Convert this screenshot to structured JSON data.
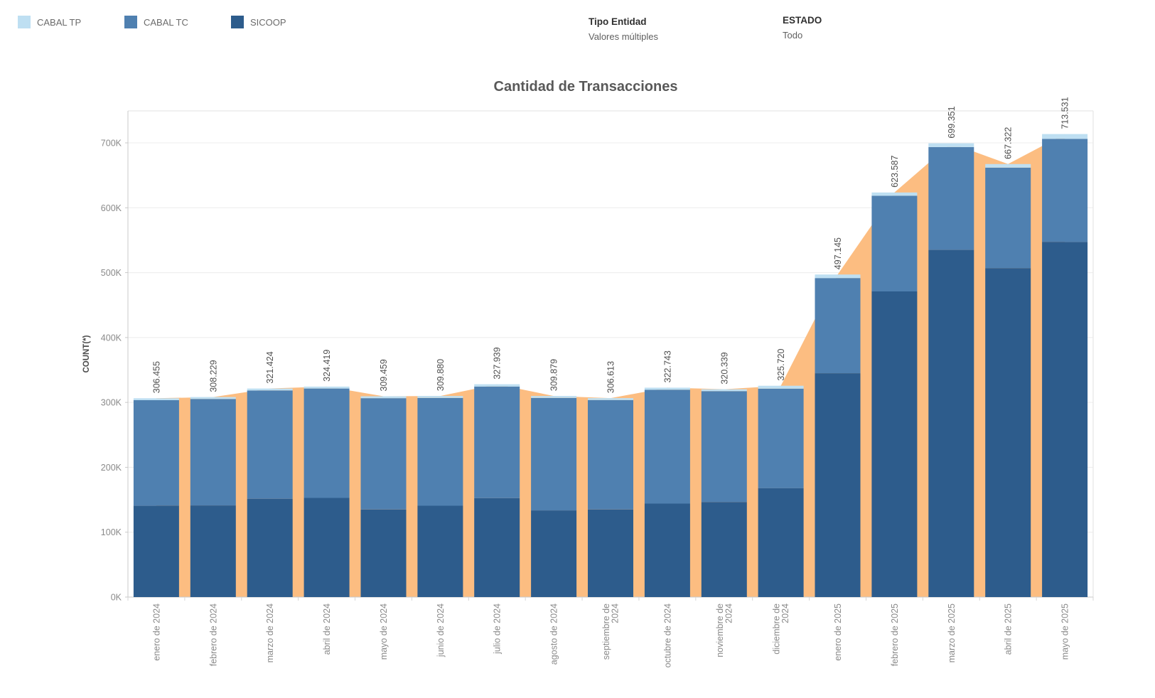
{
  "legend": {
    "items": [
      {
        "label": "CABAL TP",
        "color": "#bedff2"
      },
      {
        "label": "CABAL TC",
        "color": "#4f80b0"
      },
      {
        "label": "SICOOP",
        "color": "#2d5c8c"
      }
    ]
  },
  "filters": [
    {
      "title": "Tipo Entidad",
      "value": "Valores múltiples"
    },
    {
      "title": "ESTADO",
      "value": "Todo"
    }
  ],
  "chart_data": {
    "type": "bar",
    "subtype": "stacked-bars-with-area-behind",
    "title": "Cantidad de Transacciones",
    "ylabel": "COUNT(*)",
    "xlabel": "",
    "grid": "horizontal",
    "legend_position": "top-left",
    "ylim": [
      0,
      749000
    ],
    "y_ticks": [
      "0K",
      "100K",
      "200K",
      "300K",
      "400K",
      "500K",
      "600K",
      "700K"
    ],
    "categories": [
      "enero de 2024",
      "febrero de 2024",
      "marzo de 2024",
      "abril de 2024",
      "mayo de 2024",
      "junio de 2024",
      "julio de 2024",
      "agosto de 2024",
      "septiembre de 2024",
      "octubre de 2024",
      "noviembre de 2024",
      "diciembre de 2024",
      "enero de 2025",
      "febrero de 2025",
      "marzo de 2025",
      "abril de 2025",
      "mayo de 2025"
    ],
    "series": [
      {
        "name": "SICOOP",
        "color": "#2d5c8c",
        "stack_order": 0,
        "values": [
          141000,
          141200,
          151500,
          152800,
          135000,
          140800,
          152300,
          133500,
          135000,
          144000,
          146500,
          167800,
          345000,
          471000,
          535000,
          507000,
          547500
        ]
      },
      {
        "name": "CABAL TC",
        "color": "#4f80b0",
        "stack_order": 1,
        "values": [
          162455,
          164029,
          166924,
          168619,
          171459,
          166080,
          172139,
          173379,
          168613,
          175543,
          170839,
          153420,
          146645,
          147587,
          158551,
          154822,
          158731
        ]
      },
      {
        "name": "CABAL TP",
        "color": "#bedff2",
        "stack_order": 2,
        "values": [
          3000,
          3000,
          3000,
          3000,
          3000,
          3000,
          3500,
          3000,
          3000,
          3200,
          3000,
          4500,
          5500,
          5000,
          5800,
          5500,
          7300
        ]
      }
    ],
    "totals": [
      306455,
      308229,
      321424,
      324419,
      309459,
      309880,
      327939,
      309879,
      306613,
      322743,
      320339,
      325720,
      497145,
      623587,
      699351,
      667322,
      713531
    ],
    "total_labels": [
      "306.455",
      "308.229",
      "321.424",
      "324.419",
      "309.459",
      "309.880",
      "327.939",
      "309.879",
      "306.613",
      "322.743",
      "320.339",
      "325.720",
      "497.145",
      "623.587",
      "699.351",
      "667.322",
      "713.531"
    ],
    "area": {
      "name": "total-area",
      "color": "#fcbd81",
      "follows": "totals",
      "interpolation": "linear"
    }
  }
}
